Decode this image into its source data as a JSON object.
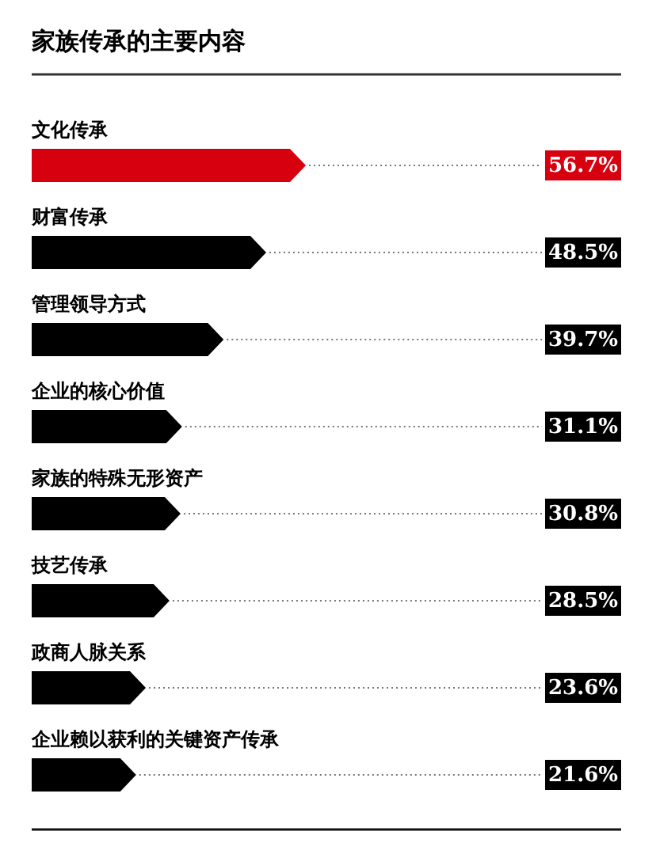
{
  "chart_data": {
    "type": "bar",
    "orientation": "horizontal",
    "title": "家族传承的主要内容",
    "categories": [
      "文化传承",
      "财富传承",
      "管理领导方式",
      "企业的核心价值",
      "家族的特殊无形资产",
      "技艺传承",
      "政商人脉关系",
      "企业赖以获利的关键资产传承"
    ],
    "values": [
      56.7,
      48.5,
      39.7,
      31.1,
      30.8,
      28.5,
      23.6,
      21.6
    ],
    "colors": [
      "#d7000f",
      "#000000",
      "#000000",
      "#000000",
      "#000000",
      "#000000",
      "#000000",
      "#000000"
    ],
    "value_labels": [
      "56.7%",
      "48.5%",
      "39.7%",
      "31.1%",
      "30.8%",
      "28.5%",
      "23.6%",
      "21.6%"
    ]
  }
}
